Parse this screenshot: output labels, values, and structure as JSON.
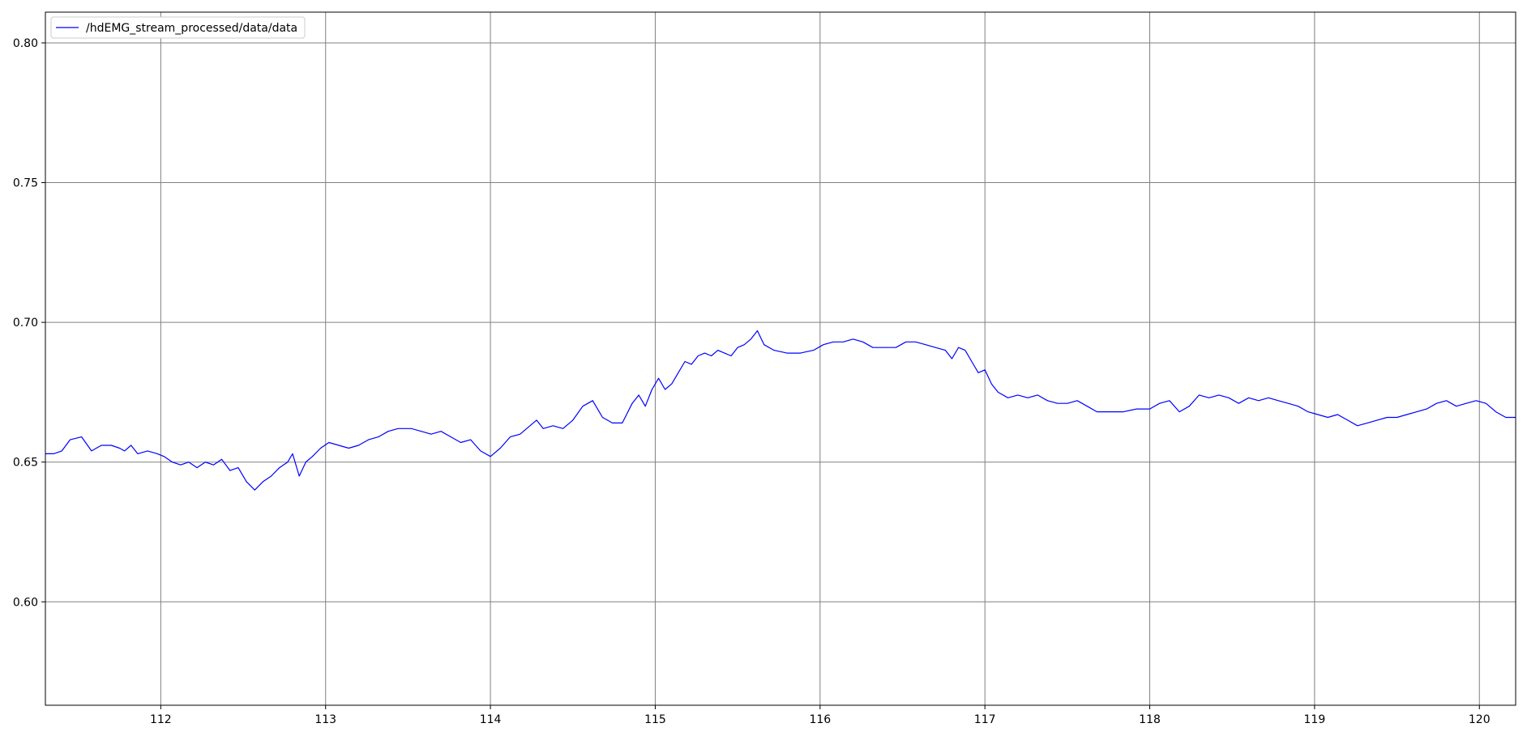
{
  "chart_data": {
    "type": "line",
    "title": "",
    "xlabel": "",
    "ylabel": "",
    "xlim": [
      111.3,
      120.22
    ],
    "ylim": [
      0.563,
      0.811
    ],
    "xticks": [
      112,
      113,
      114,
      115,
      116,
      117,
      118,
      119,
      120
    ],
    "yticks": [
      0.6,
      0.65,
      0.7,
      0.75,
      0.8
    ],
    "xtick_labels": [
      "112",
      "113",
      "114",
      "115",
      "116",
      "117",
      "118",
      "119",
      "120"
    ],
    "ytick_labels": [
      "0.60",
      "0.65",
      "0.70",
      "0.75",
      "0.80"
    ],
    "grid": true,
    "legend_position": "top-left",
    "series": [
      {
        "name": "/hdEMG_stream_processed/data/data",
        "color": "#0000ff",
        "points": [
          [
            111.3,
            0.653
          ],
          [
            111.35,
            0.653
          ],
          [
            111.4,
            0.654
          ],
          [
            111.45,
            0.658
          ],
          [
            111.52,
            0.659
          ],
          [
            111.58,
            0.654
          ],
          [
            111.64,
            0.656
          ],
          [
            111.7,
            0.656
          ],
          [
            111.75,
            0.655
          ],
          [
            111.78,
            0.654
          ],
          [
            111.82,
            0.656
          ],
          [
            111.86,
            0.653
          ],
          [
            111.92,
            0.654
          ],
          [
            111.98,
            0.653
          ],
          [
            112.02,
            0.652
          ],
          [
            112.07,
            0.65
          ],
          [
            112.12,
            0.649
          ],
          [
            112.17,
            0.65
          ],
          [
            112.22,
            0.648
          ],
          [
            112.27,
            0.65
          ],
          [
            112.32,
            0.649
          ],
          [
            112.37,
            0.651
          ],
          [
            112.42,
            0.647
          ],
          [
            112.47,
            0.648
          ],
          [
            112.52,
            0.643
          ],
          [
            112.57,
            0.64
          ],
          [
            112.62,
            0.643
          ],
          [
            112.67,
            0.645
          ],
          [
            112.72,
            0.648
          ],
          [
            112.77,
            0.65
          ],
          [
            112.8,
            0.653
          ],
          [
            112.84,
            0.645
          ],
          [
            112.88,
            0.65
          ],
          [
            112.92,
            0.652
          ],
          [
            112.97,
            0.655
          ],
          [
            113.02,
            0.657
          ],
          [
            113.08,
            0.656
          ],
          [
            113.14,
            0.655
          ],
          [
            113.2,
            0.656
          ],
          [
            113.26,
            0.658
          ],
          [
            113.32,
            0.659
          ],
          [
            113.38,
            0.661
          ],
          [
            113.44,
            0.662
          ],
          [
            113.52,
            0.662
          ],
          [
            113.58,
            0.661
          ],
          [
            113.64,
            0.66
          ],
          [
            113.7,
            0.661
          ],
          [
            113.76,
            0.659
          ],
          [
            113.82,
            0.657
          ],
          [
            113.88,
            0.658
          ],
          [
            113.94,
            0.654
          ],
          [
            114.0,
            0.652
          ],
          [
            114.06,
            0.655
          ],
          [
            114.12,
            0.659
          ],
          [
            114.18,
            0.66
          ],
          [
            114.24,
            0.663
          ],
          [
            114.28,
            0.665
          ],
          [
            114.32,
            0.662
          ],
          [
            114.38,
            0.663
          ],
          [
            114.44,
            0.662
          ],
          [
            114.5,
            0.665
          ],
          [
            114.56,
            0.67
          ],
          [
            114.62,
            0.672
          ],
          [
            114.68,
            0.666
          ],
          [
            114.74,
            0.664
          ],
          [
            114.8,
            0.664
          ],
          [
            114.86,
            0.671
          ],
          [
            114.9,
            0.674
          ],
          [
            114.94,
            0.67
          ],
          [
            114.98,
            0.676
          ],
          [
            115.02,
            0.68
          ],
          [
            115.06,
            0.676
          ],
          [
            115.1,
            0.678
          ],
          [
            115.14,
            0.682
          ],
          [
            115.18,
            0.686
          ],
          [
            115.22,
            0.685
          ],
          [
            115.26,
            0.688
          ],
          [
            115.3,
            0.689
          ],
          [
            115.34,
            0.688
          ],
          [
            115.38,
            0.69
          ],
          [
            115.42,
            0.689
          ],
          [
            115.46,
            0.688
          ],
          [
            115.5,
            0.691
          ],
          [
            115.54,
            0.692
          ],
          [
            115.58,
            0.694
          ],
          [
            115.62,
            0.697
          ],
          [
            115.66,
            0.692
          ],
          [
            115.72,
            0.69
          ],
          [
            115.8,
            0.689
          ],
          [
            115.88,
            0.689
          ],
          [
            115.96,
            0.69
          ],
          [
            116.02,
            0.692
          ],
          [
            116.08,
            0.693
          ],
          [
            116.14,
            0.693
          ],
          [
            116.2,
            0.694
          ],
          [
            116.26,
            0.693
          ],
          [
            116.32,
            0.691
          ],
          [
            116.4,
            0.691
          ],
          [
            116.46,
            0.691
          ],
          [
            116.52,
            0.693
          ],
          [
            116.58,
            0.693
          ],
          [
            116.64,
            0.692
          ],
          [
            116.7,
            0.691
          ],
          [
            116.76,
            0.69
          ],
          [
            116.8,
            0.687
          ],
          [
            116.84,
            0.691
          ],
          [
            116.88,
            0.69
          ],
          [
            116.92,
            0.686
          ],
          [
            116.96,
            0.682
          ],
          [
            117.0,
            0.683
          ],
          [
            117.04,
            0.678
          ],
          [
            117.08,
            0.675
          ],
          [
            117.14,
            0.673
          ],
          [
            117.2,
            0.674
          ],
          [
            117.26,
            0.673
          ],
          [
            117.32,
            0.674
          ],
          [
            117.38,
            0.672
          ],
          [
            117.44,
            0.671
          ],
          [
            117.5,
            0.671
          ],
          [
            117.56,
            0.672
          ],
          [
            117.62,
            0.67
          ],
          [
            117.68,
            0.668
          ],
          [
            117.76,
            0.668
          ],
          [
            117.84,
            0.668
          ],
          [
            117.92,
            0.669
          ],
          [
            118.0,
            0.669
          ],
          [
            118.06,
            0.671
          ],
          [
            118.12,
            0.672
          ],
          [
            118.18,
            0.668
          ],
          [
            118.24,
            0.67
          ],
          [
            118.3,
            0.674
          ],
          [
            118.36,
            0.673
          ],
          [
            118.42,
            0.674
          ],
          [
            118.48,
            0.673
          ],
          [
            118.54,
            0.671
          ],
          [
            118.6,
            0.673
          ],
          [
            118.66,
            0.672
          ],
          [
            118.72,
            0.673
          ],
          [
            118.78,
            0.672
          ],
          [
            118.84,
            0.671
          ],
          [
            118.9,
            0.67
          ],
          [
            118.96,
            0.668
          ],
          [
            119.02,
            0.667
          ],
          [
            119.08,
            0.666
          ],
          [
            119.14,
            0.667
          ],
          [
            119.2,
            0.665
          ],
          [
            119.26,
            0.663
          ],
          [
            119.32,
            0.664
          ],
          [
            119.38,
            0.665
          ],
          [
            119.44,
            0.666
          ],
          [
            119.5,
            0.666
          ],
          [
            119.56,
            0.667
          ],
          [
            119.62,
            0.668
          ],
          [
            119.68,
            0.669
          ],
          [
            119.74,
            0.671
          ],
          [
            119.8,
            0.672
          ],
          [
            119.86,
            0.67
          ],
          [
            119.92,
            0.671
          ],
          [
            119.98,
            0.672
          ],
          [
            120.04,
            0.671
          ],
          [
            120.1,
            0.668
          ],
          [
            120.16,
            0.666
          ],
          [
            120.22,
            0.666
          ]
        ]
      }
    ]
  }
}
